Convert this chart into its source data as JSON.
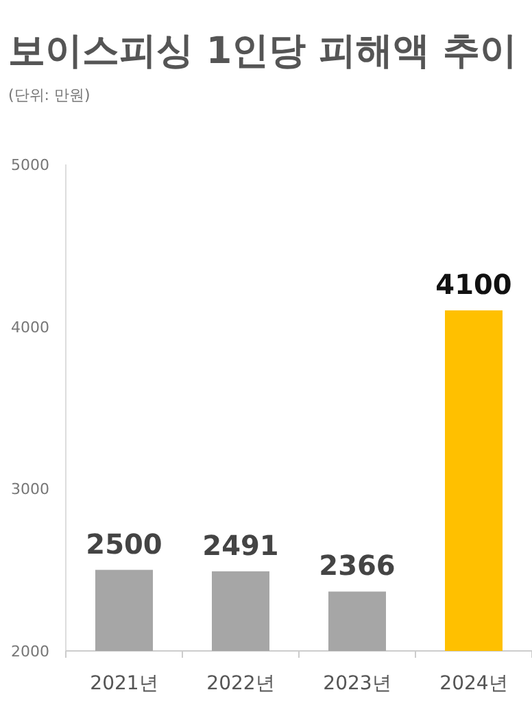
{
  "chart_data": {
    "type": "bar",
    "title": "보이스피싱 1인당 피해액 추이",
    "subtitle": "(단위: 만원)",
    "categories": [
      "2021년",
      "2022년",
      "2023년",
      "2024년"
    ],
    "values": [
      2500,
      2491,
      2366,
      4100
    ],
    "colors": [
      "#a6a6a6",
      "#a6a6a6",
      "#a6a6a6",
      "#ffc000"
    ],
    "ylim": [
      2000,
      5000
    ],
    "yticks": [
      2000,
      3000,
      4000,
      5000
    ],
    "data_labels": true
  }
}
